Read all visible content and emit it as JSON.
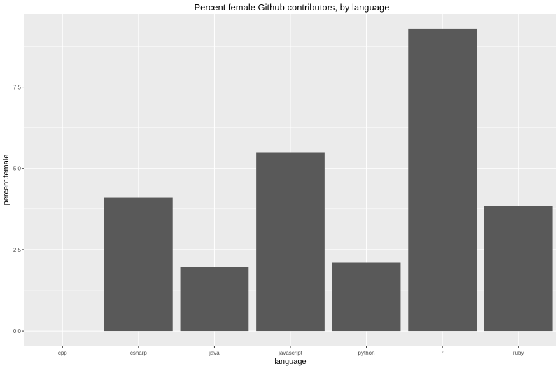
{
  "chart_data": {
    "type": "bar",
    "title": "Percent female Github contributors, by language",
    "xlabel": "language",
    "ylabel": "percent.female",
    "categories": [
      "cpp",
      "csharp",
      "java",
      "javascript",
      "python",
      "r",
      "ruby"
    ],
    "values": [
      0,
      4.1,
      1.98,
      5.5,
      2.1,
      9.3,
      3.85
    ],
    "ylim": [
      -0.45,
      9.75
    ],
    "yticks": [
      0,
      2.5,
      5,
      7.5
    ],
    "ytick_labels": [
      "0.0",
      "2.5",
      "5.0",
      "7.5"
    ],
    "grid": true,
    "bar_color": "#595959",
    "panel_color": "#ebebeb",
    "grid_color": "#ffffff"
  }
}
